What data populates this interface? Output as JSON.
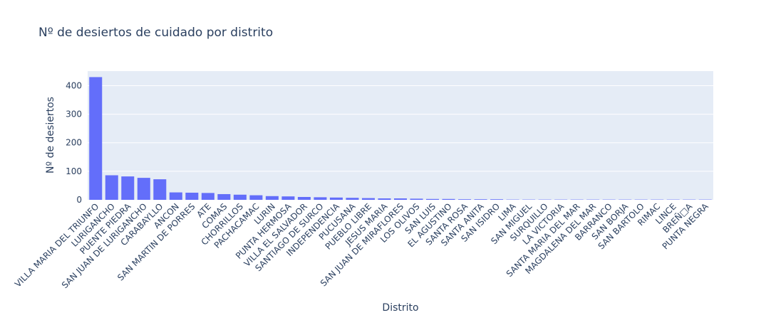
{
  "chart_data": {
    "type": "bar",
    "title": "Nº de desiertos de cuidado por distrito",
    "xlabel": "Distrito",
    "ylabel": "Nº de desiertos",
    "ylim": [
      0,
      451
    ],
    "yticks": [
      0,
      100,
      200,
      300,
      400
    ],
    "grid": true,
    "bar_color": "#636efa",
    "plot_bg": "#e5ecf6",
    "text_color": "#2a3f5f",
    "categories": [
      "VILLA MARIA DEL TRIUNFO",
      "LURIGANCHO",
      "PUENTE PIEDRA",
      "SAN JUAN DE LURIGANCHO",
      "CARABAYLLO",
      "ANCON",
      "SAN MARTIN DE PORRES",
      "ATE",
      "COMAS",
      "CHORRILLOS",
      "PACHACAMAC",
      "LURIN",
      "PUNTA HERMOSA",
      "VILLA EL SALVADOR",
      "SANTIAGO DE SURCO",
      "INDEPENDENCIA",
      "PUCUSANA",
      "PUEBLO LIBRE",
      "JESUS MARIA",
      "SAN JUAN DE MIRAFLORES",
      "LOS OLIVOS",
      "SAN LUIS",
      "EL AGUSTINO",
      "SANTA ROSA",
      "SANTA ANITA",
      "SAN ISIDRO",
      "LIMA",
      "SAN MIGUEL",
      "SURQUILLO",
      "LA VICTORIA",
      "SANTA MARIA DEL MAR",
      "MAGDALENA DEL MAR",
      "BARRANCO",
      "SAN BORJA",
      "SAN BARTOLO",
      "RIMAC",
      "LINCE",
      "BREÑ□A",
      "PUNTA NEGRA"
    ],
    "values": [
      430,
      86,
      82,
      77,
      72,
      26,
      25,
      24,
      20,
      18,
      16,
      13,
      12,
      10,
      9,
      8,
      7,
      6,
      5,
      5,
      4,
      3,
      3,
      2,
      2,
      2,
      1,
      1,
      1,
      1,
      1,
      1,
      1,
      1,
      1,
      1,
      1,
      1,
      1
    ]
  }
}
